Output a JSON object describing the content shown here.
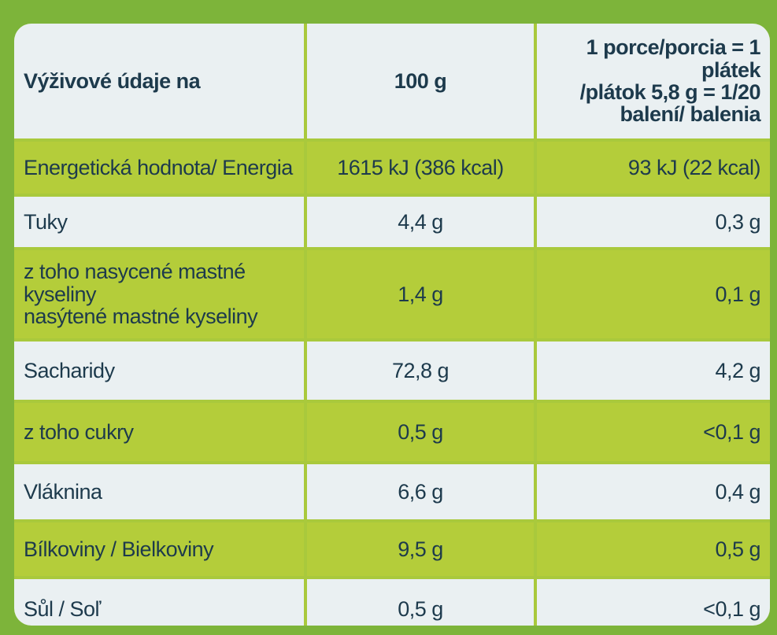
{
  "header": {
    "label": "Výživové údaje na",
    "per_100g": "100 g",
    "per_portion": "1 porce/porcia = 1 plátek\n/plátok  5,8 g = 1/20\nbalení/ balenia"
  },
  "table": {
    "rows": [
      [
        "Energetická hodnota/ Energia",
        "1615 kJ (386 kcal)",
        "93 kJ (22 kcal)"
      ],
      [
        "Tuky",
        "4,4 g",
        "0,3 g"
      ],
      [
        "z toho nasycené mastné kyseliny\nnasýtené mastné kyseliny",
        "1,4 g",
        "0,1 g"
      ],
      [
        "Sacharidy",
        "72,8 g",
        "4,2 g"
      ],
      [
        "z toho cukry",
        "0,5 g",
        "<0,1 g"
      ],
      [
        "Vláknina",
        "6,6 g",
        "0,4 g"
      ],
      [
        "Bílkoviny / Bielkoviny",
        "9,5 g",
        "0,5 g"
      ],
      [
        "Sůl / Soľ",
        "0,5 g",
        "<0,1 g"
      ]
    ]
  }
}
